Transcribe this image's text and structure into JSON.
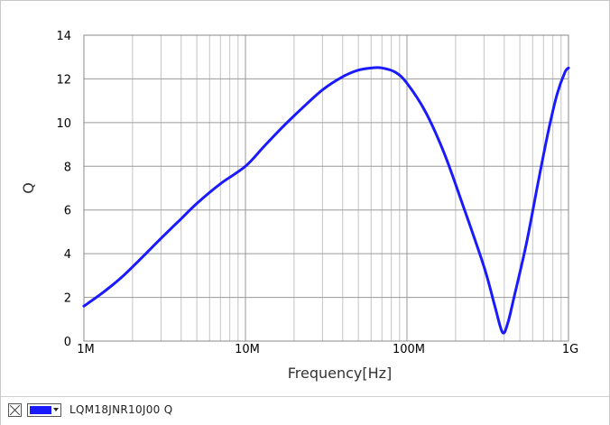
{
  "chart_data": {
    "type": "line",
    "title": "",
    "xlabel": "Frequency[Hz]",
    "ylabel": "Q",
    "x_scale": "log",
    "xlim": [
      1000000,
      1000000000
    ],
    "ylim": [
      0,
      14
    ],
    "x_ticks": [
      {
        "value": 1000000,
        "label": "1M"
      },
      {
        "value": 10000000,
        "label": "10M"
      },
      {
        "value": 100000000,
        "label": "100M"
      },
      {
        "value": 1000000000,
        "label": "1G"
      }
    ],
    "y_ticks": [
      {
        "value": 0,
        "label": "0"
      },
      {
        "value": 2,
        "label": "2"
      },
      {
        "value": 4,
        "label": "4"
      },
      {
        "value": 6,
        "label": "6"
      },
      {
        "value": 8,
        "label": "8"
      },
      {
        "value": 10,
        "label": "10"
      },
      {
        "value": 12,
        "label": "12"
      },
      {
        "value": 14,
        "label": "14"
      }
    ],
    "grid": true,
    "legend_position": "bottom-left",
    "series": [
      {
        "name": "LQM18JNR10J00 Q",
        "color": "#1a1aff",
        "x": [
          1000000,
          1300000,
          1700000,
          2200000,
          3000000,
          4000000,
          5000000,
          7000000,
          10000000,
          13000000,
          17000000,
          22000000,
          30000000,
          40000000,
          50000000,
          60000000,
          70000000,
          85000000,
          100000000,
          130000000,
          170000000,
          220000000,
          300000000,
          350000000,
          390000000,
          420000000,
          460000000,
          550000000,
          650000000,
          750000000,
          850000000,
          950000000,
          1000000000
        ],
        "y": [
          1.6,
          2.2,
          2.9,
          3.7,
          4.7,
          5.6,
          6.3,
          7.2,
          8.0,
          8.9,
          9.8,
          10.6,
          11.5,
          12.1,
          12.4,
          12.5,
          12.5,
          12.3,
          11.8,
          10.5,
          8.6,
          6.3,
          3.4,
          1.6,
          0.4,
          0.8,
          2.0,
          4.5,
          7.3,
          9.6,
          11.3,
          12.3,
          12.5
        ]
      }
    ]
  },
  "legend": {
    "label": "LQM18JNR10J00 Q",
    "swatch_color": "#1a1aff"
  }
}
